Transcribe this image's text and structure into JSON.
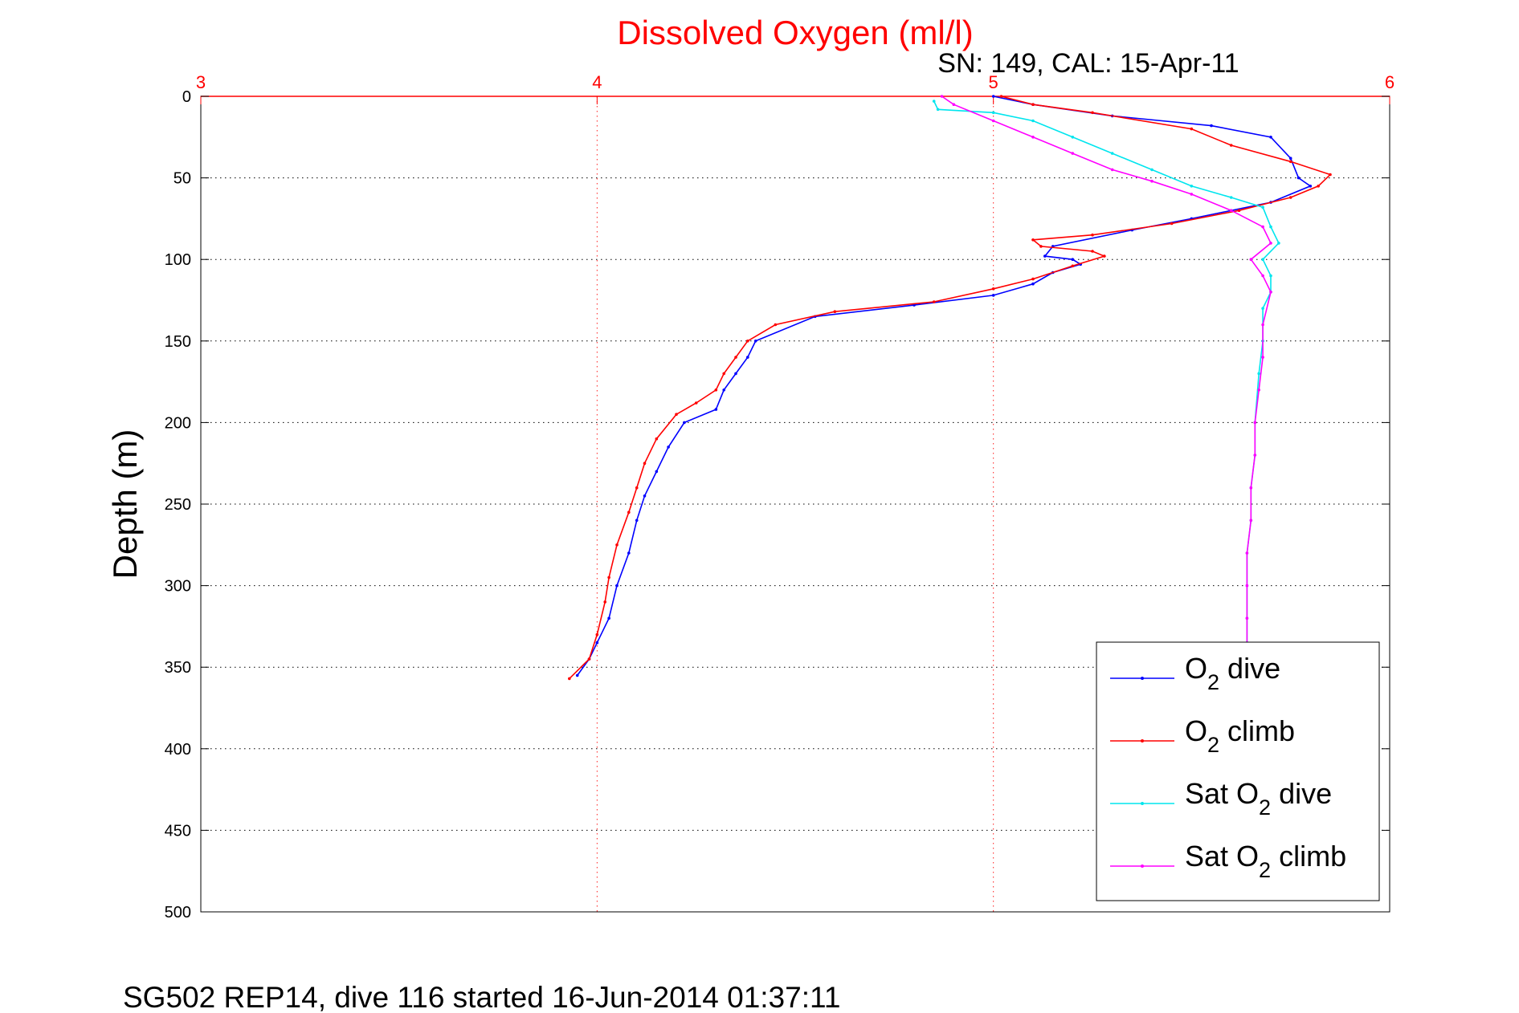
{
  "chart_data": {
    "type": "line",
    "title": "Dissolved Oxygen (ml/l)",
    "subtitle": "SN: 149, CAL: 15-Apr-11",
    "ylabel": "Depth (m)",
    "footer": "SG502 REP14, dive 116 started 16-Jun-2014 01:37:11",
    "x_axis": {
      "min": 3,
      "max": 6,
      "ticks": [
        "3",
        "4",
        "5",
        "6"
      ],
      "position": "top"
    },
    "y_axis": {
      "min": 0,
      "max": 500,
      "reversed": true,
      "ticks": [
        "0",
        "50",
        "100",
        "150",
        "200",
        "250",
        "300",
        "350",
        "400",
        "450",
        "500"
      ]
    },
    "grid": true,
    "legend_position": "bottom-right",
    "legend": [
      {
        "prefix": "O",
        "sub": "2",
        "suffix": " dive"
      },
      {
        "prefix": "O",
        "sub": "2",
        "suffix": " climb"
      },
      {
        "prefix": "Sat O",
        "sub": "2",
        "suffix": " dive"
      },
      {
        "prefix": "Sat O",
        "sub": "2",
        "suffix": " climb"
      }
    ],
    "series": [
      {
        "key": "o2-dive",
        "color": "#0000ff",
        "points": [
          [
            5.0,
            0
          ],
          [
            5.1,
            5
          ],
          [
            5.3,
            12
          ],
          [
            5.55,
            18
          ],
          [
            5.7,
            25
          ],
          [
            5.75,
            38
          ],
          [
            5.77,
            50
          ],
          [
            5.8,
            55
          ],
          [
            5.7,
            65
          ],
          [
            5.5,
            75
          ],
          [
            5.35,
            82
          ],
          [
            5.15,
            92
          ],
          [
            5.13,
            98
          ],
          [
            5.2,
            100
          ],
          [
            5.22,
            103
          ],
          [
            5.15,
            108
          ],
          [
            5.1,
            115
          ],
          [
            5.0,
            122
          ],
          [
            4.8,
            128
          ],
          [
            4.55,
            135
          ],
          [
            4.4,
            150
          ],
          [
            4.38,
            160
          ],
          [
            4.35,
            170
          ],
          [
            4.32,
            180
          ],
          [
            4.3,
            192
          ],
          [
            4.22,
            200
          ],
          [
            4.18,
            215
          ],
          [
            4.15,
            230
          ],
          [
            4.12,
            245
          ],
          [
            4.1,
            260
          ],
          [
            4.08,
            280
          ],
          [
            4.05,
            300
          ],
          [
            4.03,
            320
          ],
          [
            4.0,
            335
          ],
          [
            3.98,
            345
          ],
          [
            3.95,
            355
          ]
        ]
      },
      {
        "key": "o2-climb",
        "color": "#ff0000",
        "points": [
          [
            3.93,
            357
          ],
          [
            3.98,
            345
          ],
          [
            4.0,
            330
          ],
          [
            4.02,
            310
          ],
          [
            4.03,
            295
          ],
          [
            4.05,
            275
          ],
          [
            4.08,
            255
          ],
          [
            4.1,
            240
          ],
          [
            4.12,
            225
          ],
          [
            4.15,
            210
          ],
          [
            4.2,
            195
          ],
          [
            4.25,
            188
          ],
          [
            4.3,
            180
          ],
          [
            4.32,
            170
          ],
          [
            4.35,
            160
          ],
          [
            4.38,
            150
          ],
          [
            4.45,
            140
          ],
          [
            4.6,
            132
          ],
          [
            4.85,
            126
          ],
          [
            5.0,
            118
          ],
          [
            5.1,
            112
          ],
          [
            5.2,
            104
          ],
          [
            5.28,
            98
          ],
          [
            5.25,
            95
          ],
          [
            5.12,
            92
          ],
          [
            5.1,
            88
          ],
          [
            5.25,
            85
          ],
          [
            5.45,
            78
          ],
          [
            5.62,
            70
          ],
          [
            5.75,
            62
          ],
          [
            5.82,
            55
          ],
          [
            5.85,
            48
          ],
          [
            5.75,
            40
          ],
          [
            5.6,
            30
          ],
          [
            5.5,
            20
          ],
          [
            5.25,
            10
          ],
          [
            5.1,
            5
          ],
          [
            5.02,
            0
          ]
        ]
      },
      {
        "key": "sat-o2-dive",
        "color": "#00e5ee",
        "points": [
          [
            4.85,
            3
          ],
          [
            4.86,
            8
          ],
          [
            5.0,
            10
          ],
          [
            5.1,
            15
          ],
          [
            5.2,
            25
          ],
          [
            5.3,
            35
          ],
          [
            5.4,
            45
          ],
          [
            5.5,
            55
          ],
          [
            5.6,
            62
          ],
          [
            5.68,
            68
          ],
          [
            5.7,
            80
          ],
          [
            5.72,
            90
          ],
          [
            5.68,
            100
          ],
          [
            5.7,
            110
          ],
          [
            5.7,
            120
          ],
          [
            5.68,
            130
          ],
          [
            5.68,
            150
          ],
          [
            5.67,
            170
          ],
          [
            5.66,
            200
          ],
          [
            5.66,
            220
          ],
          [
            5.65,
            240
          ],
          [
            5.65,
            260
          ],
          [
            5.64,
            280
          ],
          [
            5.64,
            300
          ],
          [
            5.64,
            320
          ],
          [
            5.64,
            335
          ]
        ]
      },
      {
        "key": "sat-o2-climb",
        "color": "#ff00ff",
        "points": [
          [
            5.64,
            340
          ],
          [
            5.64,
            320
          ],
          [
            5.64,
            300
          ],
          [
            5.64,
            280
          ],
          [
            5.65,
            260
          ],
          [
            5.65,
            240
          ],
          [
            5.66,
            220
          ],
          [
            5.66,
            200
          ],
          [
            5.67,
            180
          ],
          [
            5.68,
            160
          ],
          [
            5.68,
            140
          ],
          [
            5.7,
            120
          ],
          [
            5.68,
            110
          ],
          [
            5.65,
            100
          ],
          [
            5.7,
            90
          ],
          [
            5.68,
            80
          ],
          [
            5.6,
            70
          ],
          [
            5.5,
            60
          ],
          [
            5.4,
            52
          ],
          [
            5.3,
            45
          ],
          [
            5.2,
            35
          ],
          [
            5.1,
            25
          ],
          [
            5.0,
            15
          ],
          [
            4.9,
            5
          ],
          [
            4.87,
            0
          ]
        ]
      }
    ]
  }
}
